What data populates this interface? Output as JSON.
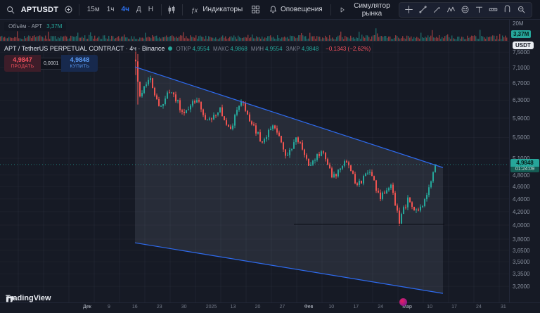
{
  "toolbar": {
    "symbol": "APTUSDT",
    "intervals": [
      {
        "label": "15м",
        "active": false
      },
      {
        "label": "1ч",
        "active": false
      },
      {
        "label": "4ч",
        "active": true
      },
      {
        "label": "Д",
        "active": false
      },
      {
        "label": "Н",
        "active": false
      }
    ],
    "indicators_label": "Индикаторы",
    "alerts_label": "Оповещения",
    "replay_label": "Симулятор рынка"
  },
  "volume_pane": {
    "label": "Объём · APT",
    "value": "3,37M"
  },
  "legend": {
    "title": "APT / TetherUS PERPETUAL CONTRACT · 4ч · Binance",
    "ohlc": [
      {
        "k": "ОТКР",
        "v": "4,9554"
      },
      {
        "k": "МАКС",
        "v": "4,9868"
      },
      {
        "k": "МИН",
        "v": "4,9554"
      },
      {
        "k": "ЗАКР",
        "v": "4,9848"
      }
    ],
    "change": "−0,1343 (−2,62%)"
  },
  "trade": {
    "sell_price": "4,9847",
    "sell_label": "ПРОДАТЬ",
    "spread": "0,0001",
    "buy_price": "4,9848",
    "buy_label": "КУПИТЬ"
  },
  "price_axis": {
    "currency": "USDT",
    "volume_top_label": "20M",
    "volume_badge": "3,37M",
    "last_price": "4,9848",
    "countdown": "01:24:09",
    "ticks": [
      {
        "p": 7.5,
        "label": "7,5000"
      },
      {
        "p": 7.1,
        "label": "7,1000"
      },
      {
        "p": 6.7,
        "label": "6,7000"
      },
      {
        "p": 6.3,
        "label": "6,3000"
      },
      {
        "p": 5.9,
        "label": "5,9000"
      },
      {
        "p": 5.5,
        "label": "5,5000"
      },
      {
        "p": 5.1,
        "label": "5,1000"
      },
      {
        "p": 4.8,
        "label": "4,8000"
      },
      {
        "p": 4.6,
        "label": "4,6000"
      },
      {
        "p": 4.4,
        "label": "4,4000"
      },
      {
        "p": 4.2,
        "label": "4,2000"
      },
      {
        "p": 4.0,
        "label": "4,0000"
      },
      {
        "p": 3.8,
        "label": "3,8000"
      },
      {
        "p": 3.65,
        "label": "3,6500"
      },
      {
        "p": 3.5,
        "label": "3,5000"
      },
      {
        "p": 3.35,
        "label": "3,3500"
      },
      {
        "p": 3.2,
        "label": "3,2000"
      }
    ]
  },
  "time_axis": {
    "labels": [
      "Дек",
      "9",
      "16",
      "23",
      "30",
      "2025",
      "13",
      "20",
      "27",
      "Фев",
      "10",
      "17",
      "24",
      "Мар",
      "10",
      "17",
      "24",
      "31"
    ]
  },
  "branding": {
    "logo_text": "TradingView"
  },
  "chart_data": {
    "type": "candlestick",
    "symbol": "APTUSDT",
    "exchange": "Binance",
    "interval": "4ч",
    "scale": "log",
    "ylim": [
      3.05,
      7.62
    ],
    "last": {
      "open": 4.9554,
      "high": 4.9868,
      "low": 4.9554,
      "close": 4.9848,
      "change_pct": -2.62
    },
    "candle_count": 143,
    "pivots": [
      [
        0,
        7.3
      ],
      [
        0.012,
        6.35
      ],
      [
        0.045,
        6.85
      ],
      [
        0.08,
        6.15
      ],
      [
        0.12,
        6.55
      ],
      [
        0.16,
        5.95
      ],
      [
        0.2,
        6.35
      ],
      [
        0.24,
        5.8
      ],
      [
        0.28,
        6.1
      ],
      [
        0.315,
        5.65
      ],
      [
        0.35,
        6.28
      ],
      [
        0.38,
        5.9
      ],
      [
        0.42,
        5.4
      ],
      [
        0.46,
        5.75
      ],
      [
        0.5,
        5.15
      ],
      [
        0.54,
        5.5
      ],
      [
        0.58,
        4.95
      ],
      [
        0.62,
        5.25
      ],
      [
        0.66,
        4.75
      ],
      [
        0.7,
        5.05
      ],
      [
        0.74,
        4.6
      ],
      [
        0.78,
        4.9
      ],
      [
        0.815,
        4.4
      ],
      [
        0.85,
        4.65
      ],
      [
        0.88,
        4.05
      ],
      [
        0.91,
        4.42
      ],
      [
        0.94,
        4.18
      ],
      [
        0.965,
        4.35
      ],
      [
        1,
        4.985
      ]
    ],
    "spikes": [
      {
        "i": 0,
        "h": 7.52,
        "l": 6.9
      },
      {
        "i": 1,
        "h": 7.45,
        "l": 6.2
      }
    ],
    "channel": {
      "x1": 192,
      "x2": 630,
      "top": [
        7.11,
        4.93
      ],
      "bottom": [
        3.75,
        3.12
      ],
      "line_color": "#2e6bf0",
      "fill": "rgba(150,156,175,0.14)"
    },
    "support_line": {
      "x1": 418,
      "x2": 632,
      "p": 4.01
    },
    "colors": {
      "up": "#26a69a",
      "down": "#ef5350",
      "accent": "#2962ff"
    },
    "layout": {
      "x0": 192,
      "step": 3,
      "y_top": 40,
      "y_bot": 398,
      "vol_base": 30
    }
  }
}
